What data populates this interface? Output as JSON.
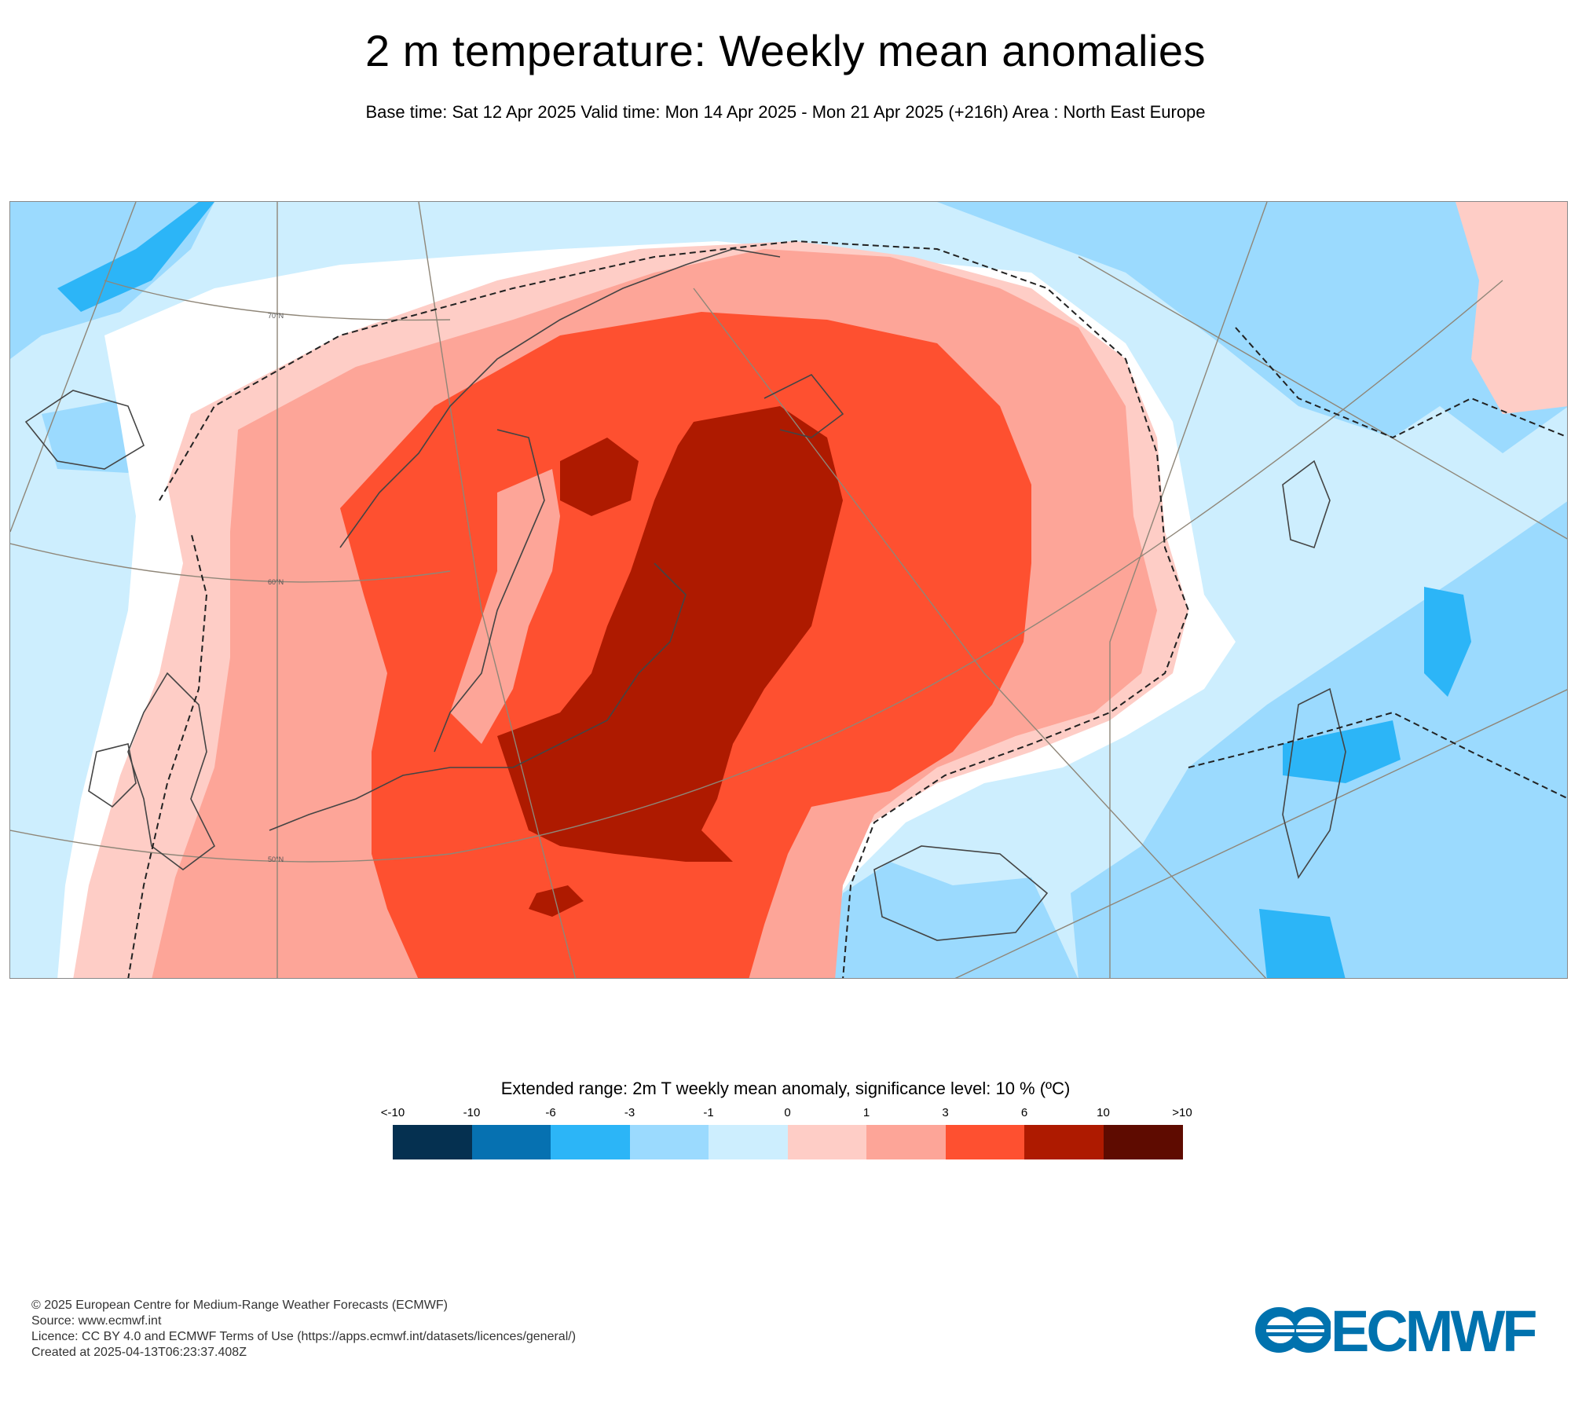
{
  "title": "2 m temperature: Weekly mean anomalies",
  "subtitle": "Base time: Sat 12 Apr 2025 Valid time: Mon 14 Apr 2025 - Mon 21 Apr 2025 (+216h) Area : North East Europe",
  "map": {
    "lat_labels": [
      "70°N",
      "60°N",
      "50°N"
    ],
    "colors": {
      "land_border": "#444444",
      "graticule": "#8f8678",
      "significance_line": "#222222"
    }
  },
  "legend": {
    "title": "Extended range: 2m T weekly mean anomaly, significance level: 10 % (ºC)",
    "ticks": [
      "<-10",
      "-10",
      "-6",
      "-3",
      "-1",
      "0",
      "1",
      "3",
      "6",
      "10",
      ">10"
    ],
    "bins": [
      {
        "range": "<-10 to -10",
        "color": "#053050"
      },
      {
        "range": "-10 to -6",
        "color": "#0671b1"
      },
      {
        "range": "-6 to -3",
        "color": "#2cb5f7"
      },
      {
        "range": "-3 to -1",
        "color": "#9bdafe"
      },
      {
        "range": "-1 to 0",
        "color": "#cdeefe"
      },
      {
        "range": "0 to 1",
        "color": "#fecdc6"
      },
      {
        "range": "1 to 3",
        "color": "#fda598"
      },
      {
        "range": "3 to 6",
        "color": "#fe5030"
      },
      {
        "range": "6 to 10",
        "color": "#ae1a00"
      },
      {
        "range": "10 to >10",
        "color": "#5e0b00"
      }
    ]
  },
  "footer": {
    "lines": [
      "© 2025 European Centre for Medium-Range Weather Forecasts (ECMWF)",
      "Source: www.ecmwf.int",
      "Licence: CC BY 4.0 and ECMWF Terms of Use (https://apps.ecmwf.int/datasets/licences/general/)",
      "Created at 2025-04-13T06:23:37.408Z"
    ]
  },
  "logo": {
    "text": "ECMWF",
    "color": "#0072ae"
  }
}
